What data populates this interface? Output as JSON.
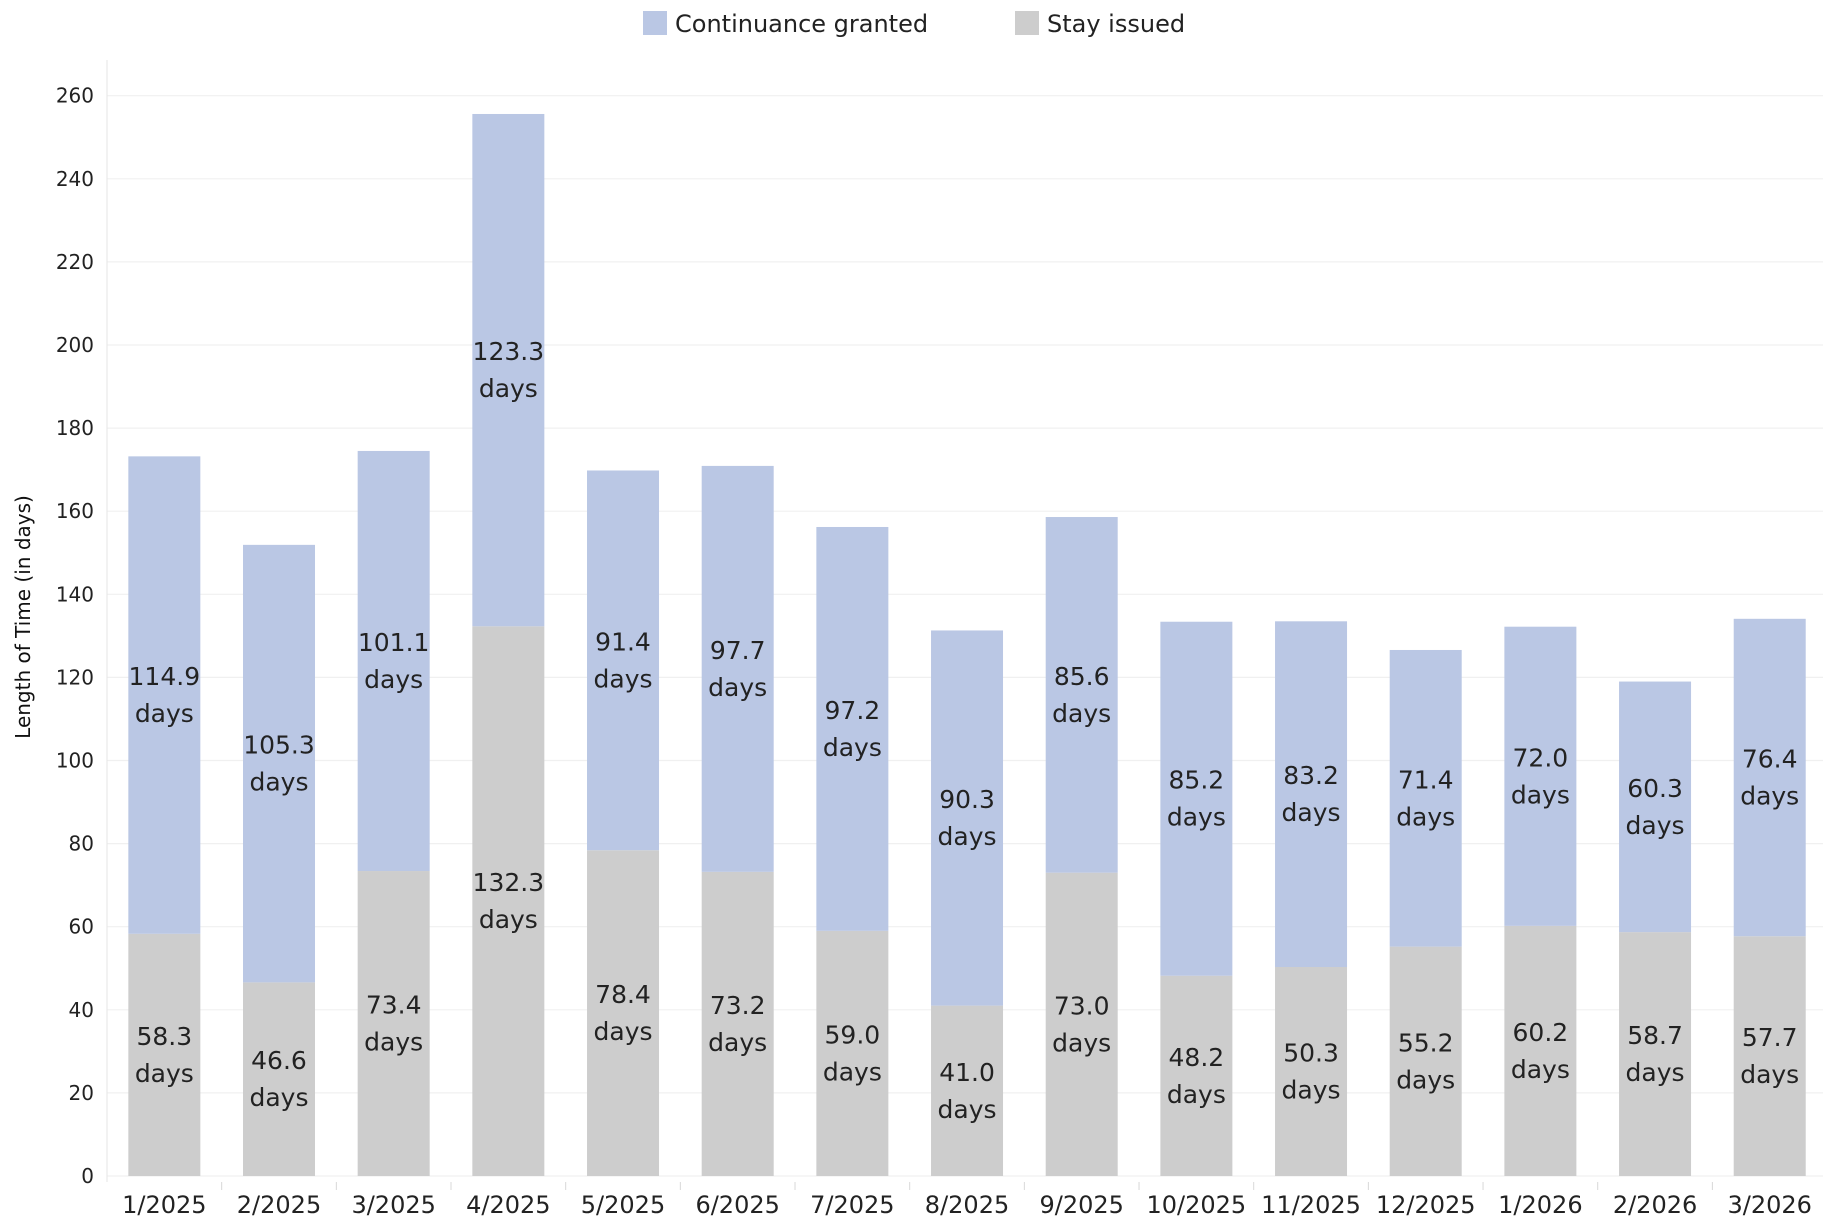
{
  "chart_data": {
    "type": "bar",
    "stacked": true,
    "title": "",
    "xlabel": "",
    "ylabel": "Length of Time (in days)",
    "ylim": [
      0,
      270
    ],
    "yticks": [
      0,
      20,
      40,
      60,
      80,
      100,
      120,
      140,
      160,
      180,
      200,
      220,
      240,
      260
    ],
    "grid": true,
    "legend_position": "top-center",
    "categories": [
      "1/2025",
      "2/2025",
      "3/2025",
      "4/2025",
      "5/2025",
      "6/2025",
      "7/2025",
      "8/2025",
      "9/2025",
      "10/2025",
      "11/2025",
      "12/2025",
      "1/2026",
      "2/2026",
      "3/2026"
    ],
    "series": [
      {
        "name": "Stay issued",
        "color": "#cdcdcd",
        "values": [
          58.3,
          46.6,
          73.4,
          132.3,
          78.4,
          73.2,
          59.0,
          41.0,
          73.0,
          48.2,
          50.3,
          55.2,
          60.2,
          58.7,
          57.7
        ],
        "labels": [
          "58.3 days",
          "46.6 days",
          "73.4 days",
          "132.3 days",
          "78.4 days",
          "73.2 days",
          "59.0 days",
          "41.0 days",
          "73.0 days",
          "48.2 days",
          "50.3 days",
          "55.2 days",
          "60.2 days",
          "58.7 days",
          "57.7 days"
        ]
      },
      {
        "name": "Continuance granted",
        "color": "#bac7e4",
        "values": [
          114.9,
          105.3,
          101.1,
          123.3,
          91.4,
          97.7,
          97.2,
          90.3,
          85.6,
          85.2,
          83.2,
          71.4,
          72.0,
          60.3,
          76.4
        ],
        "labels": [
          "114.9 days",
          "105.3 days",
          "101.1 days",
          "123.3 days",
          "91.4 days",
          "97.7 days",
          "97.2 days",
          "90.3 days",
          "85.6 days",
          "85.2 days",
          "83.2 days",
          "71.4 days",
          "72.0 days",
          "60.3 days",
          "76.4 days"
        ]
      }
    ],
    "legend_order": [
      "Continuance granted",
      "Stay issued"
    ]
  }
}
